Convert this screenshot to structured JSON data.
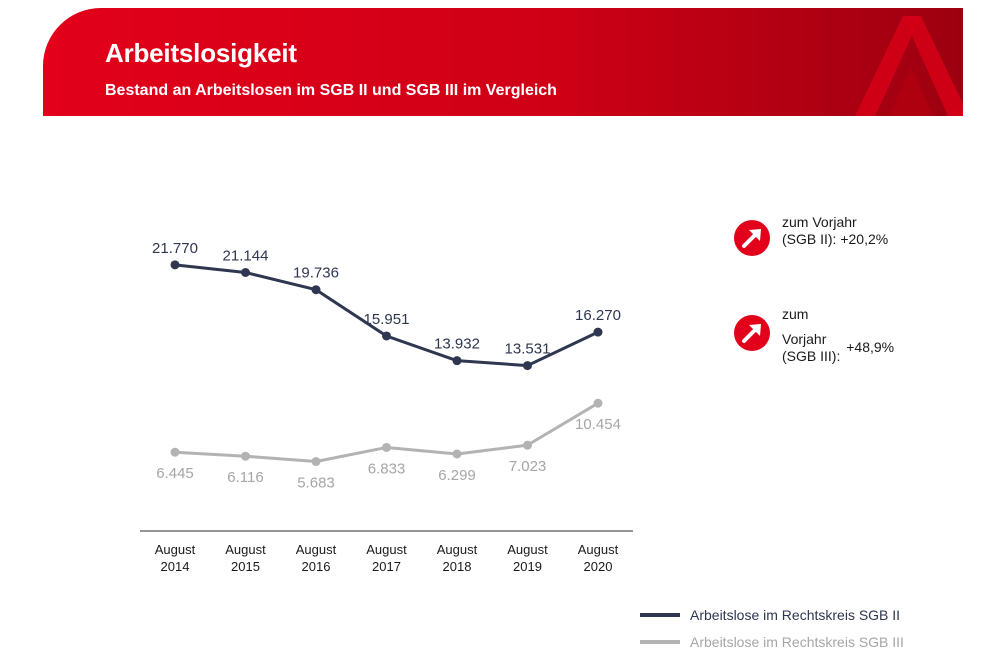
{
  "header": {
    "title": "Arbeitslosigkeit",
    "subtitle": "Bestand an Arbeitslosen im SGB II und SGB III im Vergleich"
  },
  "colors": {
    "brand_red": "#e2001a",
    "brand_dark_red": "#9c0010",
    "sgb2": "#2e3650",
    "sgb3": "#b3b3b3"
  },
  "icons": {
    "logo": "ba-logo-icon",
    "change": "arrow-up-right-icon"
  },
  "changes": {
    "sgb2": {
      "line1": "zum Vorjahr",
      "line2": "(SGB II):",
      "value": "+20,2%"
    },
    "sgb3": {
      "line1": "zum",
      "line2": "Vorjahr",
      "line3": "(SGB III):",
      "value": "+48,9%"
    }
  },
  "chart_data": {
    "type": "line",
    "categories": [
      "August\n2014",
      "August\n2015",
      "August\n2016",
      "August\n2017",
      "August\n2018",
      "August\n2019",
      "August\n2020"
    ],
    "series": [
      {
        "name": "Arbeitslose im Rechtskreis SGB II",
        "values": [
          21770,
          21144,
          19736,
          15951,
          13932,
          13531,
          16270
        ],
        "labels": [
          "21.770",
          "21.144",
          "19.736",
          "15.951",
          "13.932",
          "13.531",
          "16.270"
        ],
        "label_position": "above",
        "color": "#2e3650"
      },
      {
        "name": "Arbeitslose im Rechtskreis SGB III",
        "values": [
          6445,
          6116,
          5683,
          6833,
          6299,
          7023,
          10454
        ],
        "labels": [
          "6.445",
          "6.116",
          "5.683",
          "6.833",
          "6.299",
          "7.023",
          "10.454"
        ],
        "label_position": "below",
        "color": "#b3b3b3"
      }
    ],
    "ylim": [
      0,
      31000
    ],
    "grid": false,
    "legend_position": "bottom-right"
  }
}
